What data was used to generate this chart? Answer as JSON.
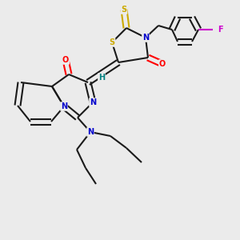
{
  "bg_color": "#ebebeb",
  "bond_color": "#1a1a1a",
  "atom_colors": {
    "N": "#0000cc",
    "O": "#ff0000",
    "S": "#ccaa00",
    "F": "#cc00cc",
    "H": "#008080",
    "C": "#1a1a1a"
  },
  "lw": 1.5,
  "fs": 7.0
}
